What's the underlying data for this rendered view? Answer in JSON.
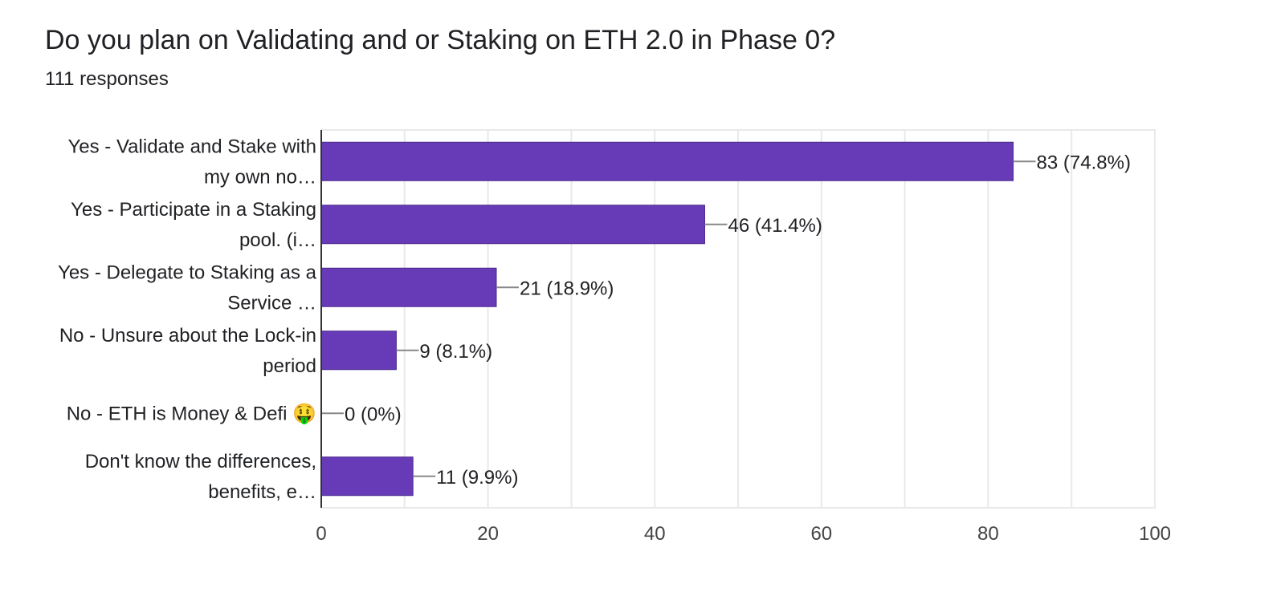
{
  "header": {
    "title": "Do you plan on Validating and or Staking on ETH 2.0 in Phase 0?",
    "responses": "111 responses"
  },
  "colors": {
    "bar": "#673ab7",
    "bar_stroke": "#4a2a8c",
    "gridline": "#e9e9e9",
    "axis": "#333333",
    "leader": "#888888"
  },
  "chart_data": {
    "type": "bar",
    "orientation": "horizontal",
    "title": "Do you plan on Validating and or Staking on ETH 2.0 in Phase 0?",
    "subtitle": "111 responses",
    "categories": [
      [
        "Yes - Validate and Stake with",
        "my own no…"
      ],
      [
        "Yes - Participate in a Staking",
        "pool. (i…"
      ],
      [
        "Yes - Delegate to Staking as a",
        "Service …"
      ],
      [
        "No - Unsure about the Lock-in",
        "period"
      ],
      [
        "No - ETH is Money & Defi 🤑"
      ],
      [
        "Don't know the differences,",
        "benefits, e…"
      ]
    ],
    "values": [
      83,
      46,
      21,
      9,
      0,
      11
    ],
    "data_labels": [
      "83 (74.8%)",
      "46 (41.4%)",
      "21 (18.9%)",
      "9 (8.1%)",
      "0 (0%)",
      "11 (9.9%)"
    ],
    "xlim": [
      0,
      100
    ],
    "xticks": [
      0,
      20,
      40,
      60,
      80,
      100
    ],
    "xlabel": "",
    "ylabel": "",
    "grid": true
  }
}
